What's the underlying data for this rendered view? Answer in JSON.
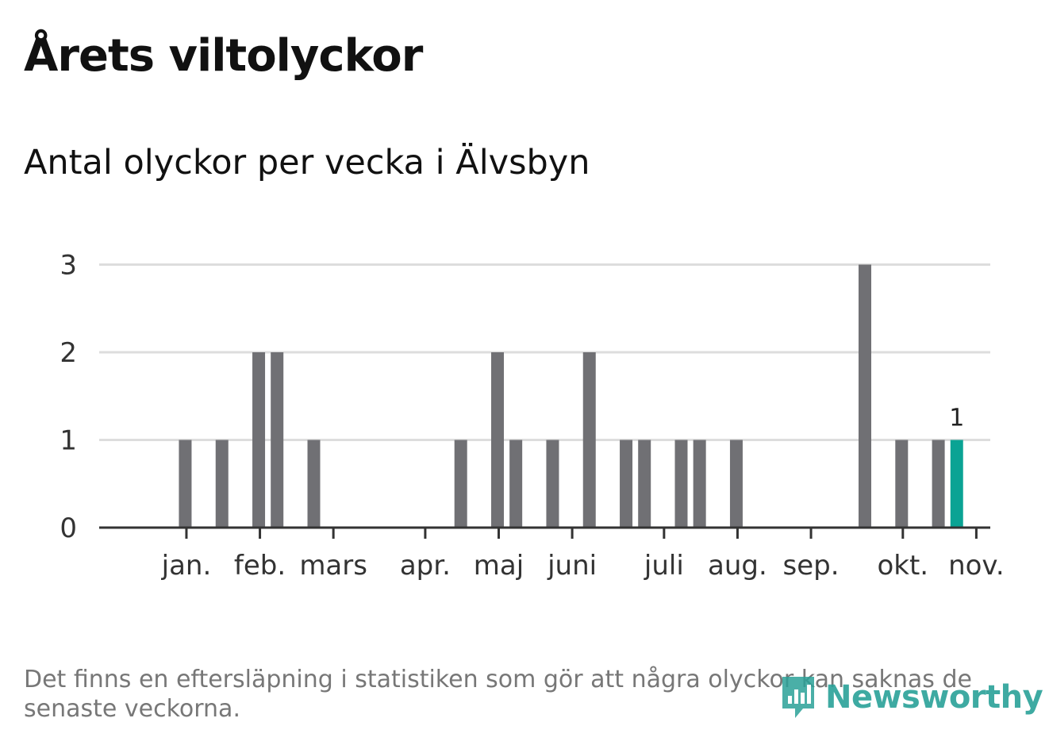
{
  "header": {
    "title": "Årets viltolyckor",
    "subtitle": "Antal olyckor per vecka i Älvsbyn"
  },
  "footnote": "Det finns en eftersläpning i statistiken som gör att några olyckor kan saknas de senaste veckorna.",
  "logo": {
    "text": "Newsworthy"
  },
  "colors": {
    "bar": "#707074",
    "highlight": "#0aa394",
    "grid": "#dddddd",
    "axis": "#333333"
  },
  "chart_data": {
    "type": "bar",
    "title": "",
    "xlabel": "",
    "ylabel": "",
    "ylim": [
      0,
      3
    ],
    "yticks": [
      0,
      1,
      2,
      3
    ],
    "grid": true,
    "x": [
      1,
      2,
      3,
      4,
      5,
      6,
      7,
      8,
      9,
      10,
      11,
      12,
      13,
      14,
      15,
      16,
      17,
      18,
      19,
      20,
      21,
      22,
      23,
      24,
      25,
      26,
      27,
      28,
      29,
      30,
      31,
      32,
      33,
      34,
      35,
      36,
      37,
      38,
      39,
      40,
      41,
      42,
      43,
      44,
      45,
      46
    ],
    "values": [
      0,
      0,
      0,
      1,
      0,
      1,
      0,
      2,
      2,
      0,
      1,
      0,
      0,
      0,
      0,
      0,
      0,
      0,
      1,
      0,
      2,
      1,
      0,
      1,
      0,
      2,
      0,
      1,
      1,
      0,
      1,
      1,
      0,
      1,
      0,
      0,
      0,
      0,
      0,
      0,
      3,
      0,
      1,
      0,
      1,
      1
    ],
    "highlight_index": 45,
    "data_labels": [
      {
        "index": 45,
        "text": "1"
      }
    ],
    "month_ticks": [
      {
        "label": "jan.",
        "week": 4
      },
      {
        "label": "feb.",
        "week": 8
      },
      {
        "label": "mars",
        "week": 12
      },
      {
        "label": "apr.",
        "week": 17
      },
      {
        "label": "maj",
        "week": 21
      },
      {
        "label": "juni",
        "week": 25
      },
      {
        "label": "juli",
        "week": 30
      },
      {
        "label": "aug.",
        "week": 34
      },
      {
        "label": "sep.",
        "week": 38
      },
      {
        "label": "okt.",
        "week": 43
      },
      {
        "label": "nov.",
        "week": 47
      }
    ]
  }
}
